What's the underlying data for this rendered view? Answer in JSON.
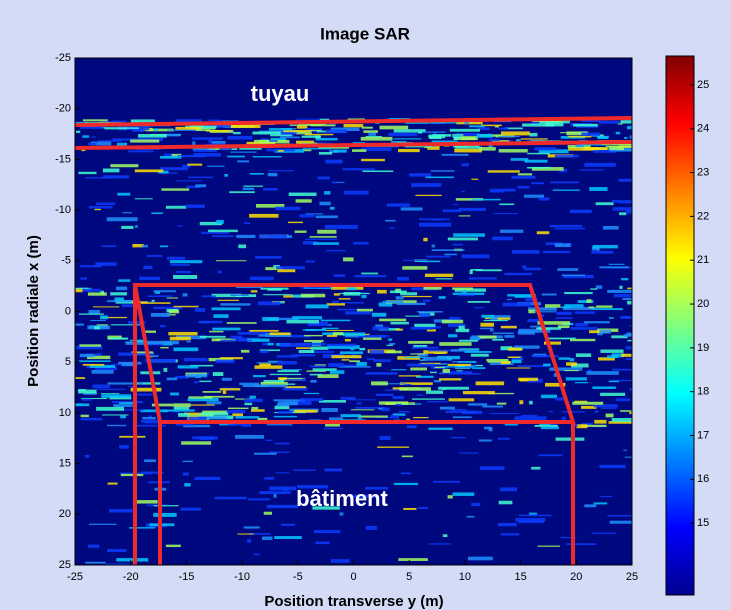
{
  "chart_data": {
    "type": "heatmap",
    "title": "Image SAR",
    "xlabel": "Position transverse y (m)",
    "ylabel": "Position radiale x (m)",
    "xlim": [
      -25,
      25
    ],
    "xticks": [
      -25,
      -20,
      -15,
      -10,
      -5,
      0,
      5,
      10,
      15,
      20,
      25
    ],
    "ylim": [
      -25,
      25
    ],
    "yticks": [
      -25,
      -20,
      -15,
      -10,
      -5,
      0,
      5,
      10,
      15,
      20,
      25
    ],
    "y_reversed": true,
    "colormap": "jet",
    "clim": [
      13.36,
      25.66
    ],
    "cticks": [
      15,
      16,
      17,
      18,
      19,
      20,
      21,
      22,
      23,
      24,
      25
    ],
    "annotations": [
      "tuyau",
      "bâtiment"
    ]
  }
}
